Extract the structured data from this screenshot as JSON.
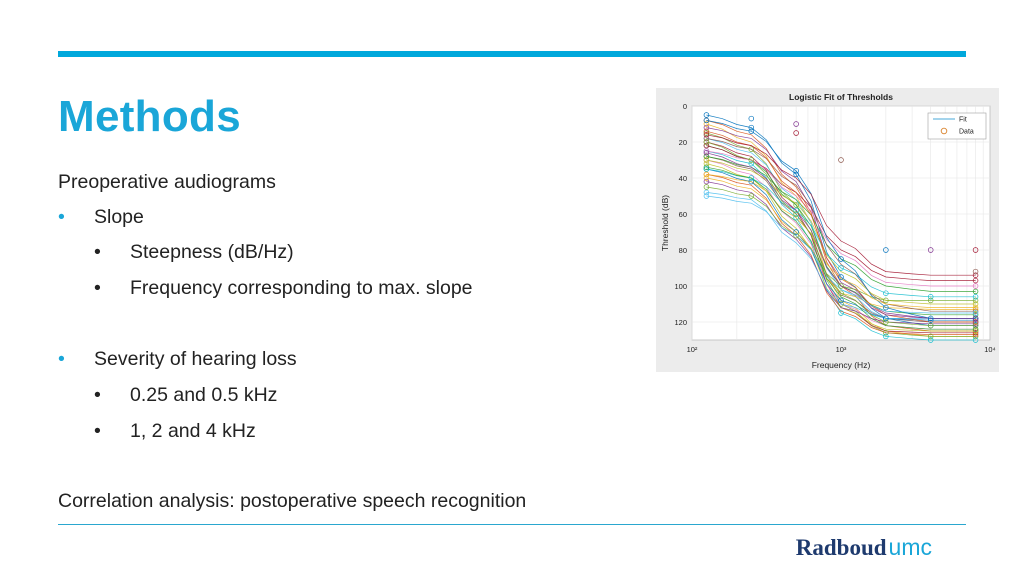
{
  "slide": {
    "title": "Methods",
    "intro": "Preoperative audiograms",
    "bullets": [
      {
        "text": "Slope",
        "sub": [
          "Steepness (dB/Hz)",
          "Frequency corresponding to max. slope"
        ]
      },
      {
        "text": "Severity of hearing loss",
        "sub": [
          "0.25 and 0.5 kHz",
          "1, 2 and 4 kHz"
        ]
      }
    ],
    "conclusion": "Correlation analysis: postoperative speech recognition",
    "logo": {
      "main": "Radboud",
      "suffix": "umc"
    }
  },
  "chart_data": {
    "type": "line",
    "title": "Logistic Fit of Thresholds",
    "xlabel": "Frequency (Hz)",
    "ylabel": "Threshold (dB)",
    "x_scale": "log",
    "xlim": [
      100,
      10000
    ],
    "ylim": [
      0,
      130
    ],
    "y_reversed": true,
    "x_ticks": [
      "10²",
      "10³",
      "10⁴"
    ],
    "y_ticks": [
      0,
      20,
      40,
      60,
      80,
      100,
      120
    ],
    "grid": true,
    "legend": {
      "position": "top-right",
      "entries": [
        "Fit",
        "Data"
      ]
    },
    "data_frequencies_hz": [
      125,
      250,
      500,
      1000,
      2000,
      4000,
      8000
    ],
    "series": [
      {
        "values": [
          5,
          12,
          38,
          95,
          118,
          122,
          122
        ]
      },
      {
        "values": [
          8,
          16,
          45,
          100,
          122,
          125,
          125
        ]
      },
      {
        "values": [
          10,
          20,
          50,
          108,
          125,
          128,
          128
        ]
      },
      {
        "values": [
          12,
          18,
          42,
          98,
          115,
          118,
          118
        ]
      },
      {
        "values": [
          15,
          24,
          55,
          110,
          126,
          128,
          128
        ]
      },
      {
        "values": [
          18,
          26,
          52,
          102,
          118,
          120,
          120
        ]
      },
      {
        "values": [
          20,
          28,
          58,
          112,
          125,
          126,
          126
        ]
      },
      {
        "values": [
          22,
          30,
          55,
          100,
          114,
          116,
          116
        ]
      },
      {
        "values": [
          25,
          32,
          62,
          115,
          128,
          130,
          130
        ]
      },
      {
        "values": [
          28,
          35,
          60,
          105,
          118,
          120,
          120
        ]
      },
      {
        "values": [
          30,
          38,
          65,
          110,
          122,
          124,
          124
        ]
      },
      {
        "values": [
          32,
          40,
          68,
          112,
          124,
          125,
          125
        ]
      },
      {
        "values": [
          35,
          42,
          70,
          108,
          118,
          119,
          119
        ]
      },
      {
        "values": [
          38,
          44,
          72,
          114,
          126,
          127,
          127
        ]
      },
      {
        "values": [
          40,
          46,
          70,
          104,
          112,
          113,
          113
        ]
      },
      {
        "values": [
          42,
          48,
          74,
          112,
          120,
          121,
          121
        ]
      },
      {
        "values": [
          45,
          50,
          72,
          100,
          108,
          108,
          108
        ]
      },
      {
        "values": [
          48,
          52,
          76,
          110,
          118,
          118,
          118
        ]
      },
      {
        "values": [
          22,
          30,
          48,
          80,
          95,
          97,
          97
        ]
      },
      {
        "values": [
          28,
          34,
          52,
          85,
          100,
          103,
          103
        ]
      },
      {
        "values": [
          35,
          40,
          58,
          90,
          104,
          106,
          106
        ]
      },
      {
        "values": [
          18,
          24,
          44,
          88,
          110,
          114,
          114
        ]
      },
      {
        "values": [
          25,
          30,
          50,
          82,
          98,
          100,
          100
        ]
      },
      {
        "values": [
          30,
          36,
          54,
          92,
          108,
          110,
          110
        ]
      },
      {
        "values": [
          8,
          14,
          36,
          85,
          112,
          118,
          118
        ]
      },
      {
        "values": [
          14,
          22,
          48,
          96,
          116,
          120,
          120
        ]
      },
      {
        "values": [
          38,
          42,
          62,
          96,
          110,
          112,
          112
        ]
      },
      {
        "values": [
          26,
          34,
          58,
          100,
          116,
          118,
          118
        ]
      },
      {
        "values": [
          20,
          30,
          60,
          104,
          120,
          122,
          122
        ]
      },
      {
        "values": [
          50,
          54,
          72,
          102,
          114,
          115,
          115
        ]
      },
      {
        "values": [
          16,
          22,
          40,
          75,
          92,
          94,
          94
        ]
      },
      {
        "values": [
          34,
          40,
          64,
          106,
          122,
          124,
          124
        ]
      }
    ],
    "outlier_points": [
      {
        "x": 250,
        "y": 7
      },
      {
        "x": 500,
        "y": 10
      },
      {
        "x": 500,
        "y": 15
      },
      {
        "x": 1000,
        "y": 30
      },
      {
        "x": 2000,
        "y": 80
      },
      {
        "x": 4000,
        "y": 80
      },
      {
        "x": 8000,
        "y": 80
      },
      {
        "x": 8000,
        "y": 92
      }
    ]
  }
}
